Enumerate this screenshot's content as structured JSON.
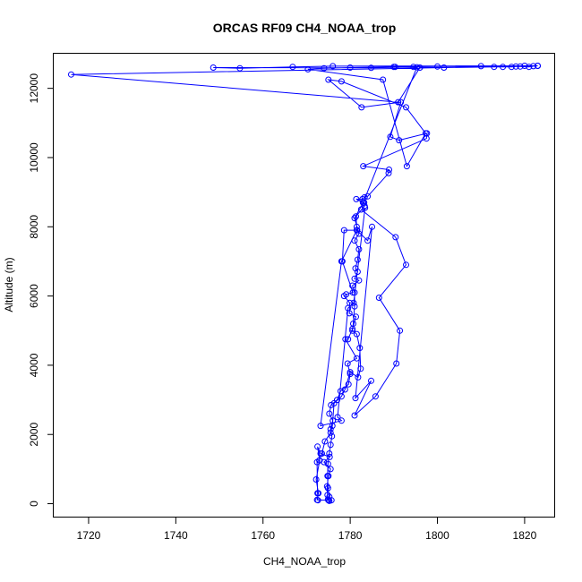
{
  "chart_data": {
    "type": "line",
    "title": "ORCAS RF09 CH4_NOAA_trop",
    "xlabel": "CH4_NOAA_trop",
    "ylabel": "Altitude (m)",
    "xlim": [
      1712,
      1827
    ],
    "ylim": [
      -400,
      13000
    ],
    "xticks": [
      1720,
      1740,
      1760,
      1780,
      1800,
      1820
    ],
    "yticks": [
      0,
      2000,
      4000,
      6000,
      8000,
      10000,
      12000
    ],
    "grid": false,
    "legend": "none",
    "series": [
      {
        "color": "#0000ff",
        "marker": "open-circle",
        "points": [
          [
            1775.0,
            100
          ],
          [
            1772.4,
            110
          ],
          [
            1772.7,
            300
          ],
          [
            1772.2,
            700
          ],
          [
            1773.0,
            1250
          ],
          [
            1772.5,
            1650
          ],
          [
            1773.2,
            1450
          ],
          [
            1775.3,
            1350
          ],
          [
            1774.0,
            1200
          ],
          [
            1775.5,
            1000
          ],
          [
            1775.0,
            800
          ],
          [
            1774.7,
            500
          ],
          [
            1774.8,
            250
          ],
          [
            1774.9,
            120
          ],
          [
            1775.2,
            80
          ],
          [
            1775.7,
            100
          ],
          [
            1775.2,
            200
          ],
          [
            1774.9,
            450
          ],
          [
            1774.8,
            800
          ],
          [
            1774.9,
            1150
          ],
          [
            1775.2,
            1450
          ],
          [
            1775.5,
            1700
          ],
          [
            1775.8,
            1950
          ],
          [
            1775.5,
            2150
          ],
          [
            1776.0,
            2400
          ],
          [
            1775.2,
            2600
          ],
          [
            1775.6,
            2850
          ],
          [
            1777.0,
            3000
          ],
          [
            1777.8,
            3250
          ],
          [
            1779.6,
            3450
          ],
          [
            1780.0,
            3750
          ],
          [
            1779.4,
            4050
          ],
          [
            1781.5,
            4200
          ],
          [
            1778.9,
            4750
          ],
          [
            1779.5,
            4750
          ],
          [
            1780.5,
            5050
          ],
          [
            1781.3,
            5400
          ],
          [
            1779.8,
            5500
          ],
          [
            1779.9,
            5800
          ],
          [
            1778.6,
            6000
          ],
          [
            1779.1,
            6050
          ],
          [
            1780.6,
            6100
          ],
          [
            1778.2,
            7000
          ],
          [
            1778.6,
            7900
          ],
          [
            1781.6,
            7900
          ],
          [
            1781.5,
            8000
          ],
          [
            1781.3,
            8300
          ],
          [
            1783.3,
            8600
          ],
          [
            1783.2,
            8700
          ],
          [
            1782.9,
            8700
          ],
          [
            1781.4,
            8800
          ],
          [
            1782.8,
            8800
          ],
          [
            1783.3,
            8850
          ],
          [
            1784.0,
            8880
          ],
          [
            1788.8,
            9550
          ],
          [
            1788.9,
            9650
          ],
          [
            1783.0,
            9750
          ],
          [
            1797.5,
            10550
          ],
          [
            1797.6,
            10700
          ],
          [
            1791.2,
            10500
          ],
          [
            1789.2,
            10600
          ],
          [
            1791.6,
            11600
          ],
          [
            1782.6,
            11450
          ],
          [
            1775.0,
            12250
          ],
          [
            1778.0,
            12200
          ],
          [
            1792.8,
            11450
          ],
          [
            1797.3,
            10700
          ],
          [
            1793.0,
            9750
          ],
          [
            1787.5,
            12250
          ],
          [
            1770.3,
            12550
          ],
          [
            1774.0,
            12580
          ],
          [
            1780.0,
            12600
          ],
          [
            1790.0,
            12620
          ],
          [
            1800.0,
            12630
          ],
          [
            1810.0,
            12640
          ],
          [
            1820.0,
            12650
          ],
          [
            1823.0,
            12650
          ],
          [
            1716.0,
            12400
          ],
          [
            1791.0,
            11600
          ],
          [
            1796.0,
            12600
          ],
          [
            1801.5,
            12600
          ],
          [
            1813.0,
            12620
          ],
          [
            1815.0,
            12620
          ],
          [
            1817.0,
            12620
          ],
          [
            1818.0,
            12630
          ],
          [
            1819.0,
            12630
          ],
          [
            1821.0,
            12620
          ],
          [
            1822.0,
            12640
          ],
          [
            1823.0,
            12650
          ],
          [
            1776.0,
            12640
          ],
          [
            1766.8,
            12620
          ],
          [
            1754.7,
            12580
          ],
          [
            1748.6,
            12600
          ],
          [
            1784.8,
            12590
          ],
          [
            1794.5,
            12620
          ],
          [
            1790.3,
            12620
          ],
          [
            1795.3,
            12610
          ],
          [
            1783.0,
            8700
          ],
          [
            1781.0,
            8250
          ],
          [
            1782.0,
            7800
          ],
          [
            1781.0,
            7600
          ],
          [
            1782.0,
            7350
          ],
          [
            1781.7,
            7050
          ],
          [
            1781.2,
            6800
          ],
          [
            1781.7,
            6700
          ],
          [
            1781.0,
            6500
          ],
          [
            1782.0,
            6450
          ],
          [
            1780.5,
            6300
          ],
          [
            1781.0,
            6100
          ],
          [
            1781.0,
            5700
          ],
          [
            1780.7,
            5200
          ],
          [
            1780.5,
            5000
          ],
          [
            1781.5,
            4900
          ],
          [
            1782.2,
            4500
          ],
          [
            1782.4,
            3900
          ],
          [
            1781.8,
            3650
          ],
          [
            1780.0,
            3800
          ],
          [
            1778.8,
            3300
          ],
          [
            1778.0,
            3100
          ],
          [
            1776.3,
            2900
          ],
          [
            1775.9,
            2250
          ],
          [
            1775.5,
            2050
          ],
          [
            1774.2,
            1800
          ],
          [
            1773.5,
            1450
          ],
          [
            1772.9,
            1250
          ],
          [
            1772.4,
            1200
          ],
          [
            1772.5,
            300
          ],
          [
            1772.6,
            100
          ]
        ],
        "ext_points": [
          [
            1782.5,
            8500
          ],
          [
            1790.4,
            7700
          ],
          [
            1792.8,
            6900
          ],
          [
            1786.6,
            5950
          ],
          [
            1791.4,
            5000
          ],
          [
            1790.6,
            4050
          ],
          [
            1785.8,
            3100
          ],
          [
            1781.0,
            2550
          ],
          [
            1784.8,
            3550
          ],
          [
            1781.2,
            3050
          ],
          [
            1785.0,
            8000
          ],
          [
            1784.0,
            7600
          ],
          [
            1781.5,
            7900
          ],
          [
            1778.0,
            7000
          ],
          [
            1773.2,
            2250
          ],
          [
            1778.0,
            2400
          ],
          [
            1777.1,
            2500
          ],
          [
            1779.5,
            5650
          ],
          [
            1780.8,
            5800
          ],
          [
            1783.4,
            8550
          ]
        ]
      }
    ]
  }
}
